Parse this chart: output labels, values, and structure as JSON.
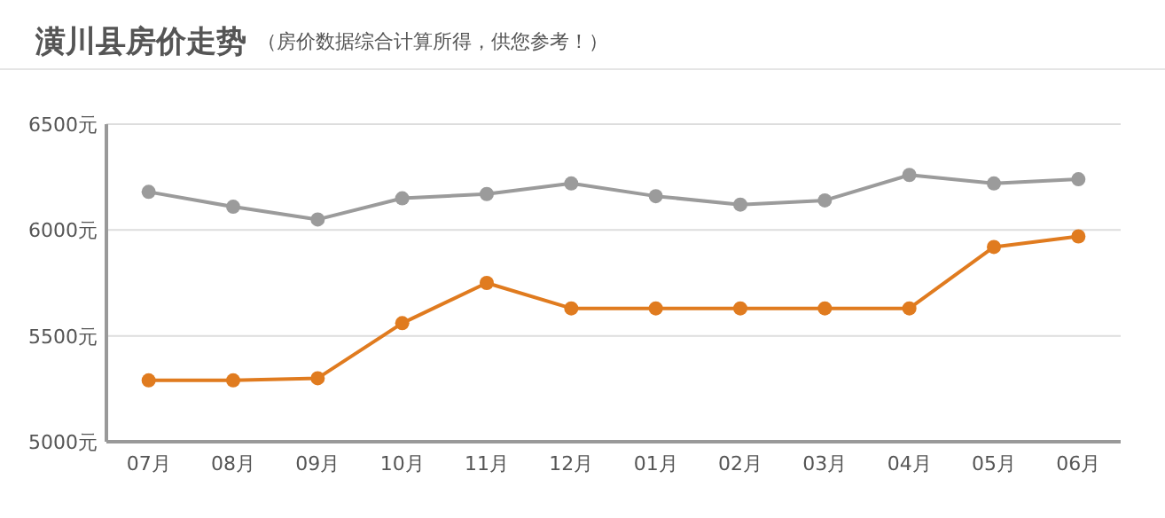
{
  "chart_data": {
    "type": "line",
    "title": "潢川县房价走势",
    "subtitle": "（房价数据综合计算所得，供您参考！）",
    "categories": [
      "07月",
      "08月",
      "09月",
      "10月",
      "11月",
      "12月",
      "01月",
      "02月",
      "03月",
      "04月",
      "05月",
      "06月"
    ],
    "series": [
      {
        "color": "#9b9b9b",
        "values": [
          6180,
          6110,
          6050,
          6150,
          6170,
          6220,
          6160,
          6120,
          6140,
          6260,
          6220,
          6240
        ]
      },
      {
        "color": "#e07b1f",
        "values": [
          5290,
          5290,
          5300,
          5560,
          5750,
          5630,
          5630,
          5630,
          5630,
          5630,
          5920,
          5970
        ]
      }
    ],
    "ylim": [
      5000,
      6500
    ],
    "yticks": [
      {
        "value": 5000,
        "label": "5000元"
      },
      {
        "value": 5500,
        "label": "5500元"
      },
      {
        "value": 6000,
        "label": "6000元"
      },
      {
        "value": 6500,
        "label": "6500元"
      }
    ],
    "grid": "y",
    "marker": "circle",
    "line_style": "solid"
  }
}
